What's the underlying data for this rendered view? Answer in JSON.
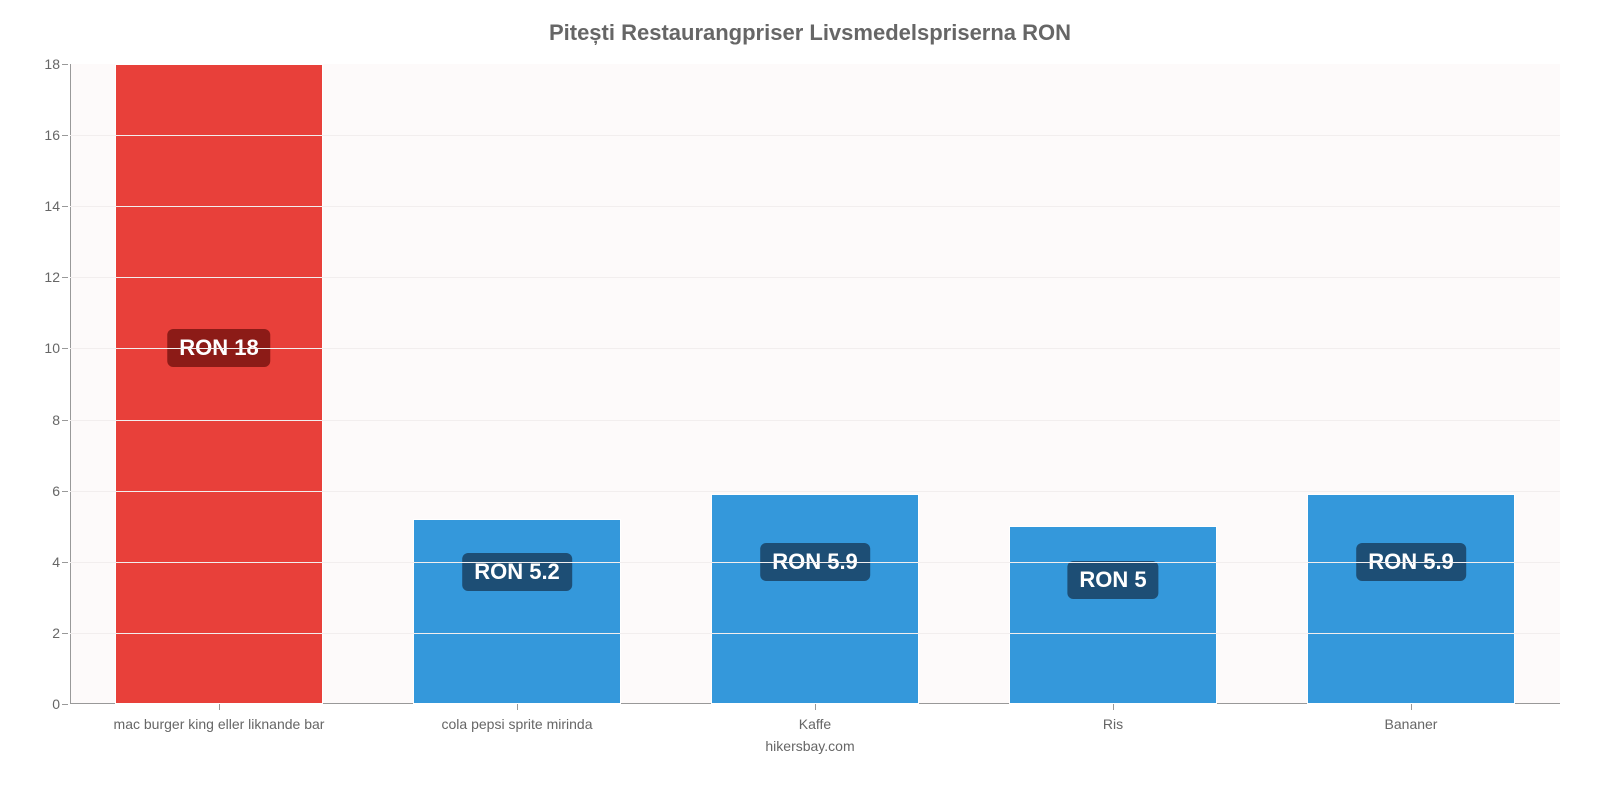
{
  "chart": {
    "type": "bar",
    "title": "Pitești Restaurangpriser Livsmedelspriserna RON",
    "title_fontsize": 22,
    "title_color": "#666666",
    "footer": "hikersbay.com",
    "footer_fontsize": 14,
    "background_color": "#fdfafa",
    "grid_color": "#f2eeee",
    "axis_color": "#999999",
    "bar_border_color": "#ffffff",
    "bar_width": 0.7,
    "ylim": [
      0,
      18
    ],
    "ytick_step": 2,
    "y_tick_fontsize": 14,
    "x_label_fontsize": 14,
    "categories": [
      "mac burger king eller liknande bar",
      "cola pepsi sprite mirinda",
      "Kaffe",
      "Ris",
      "Bananer"
    ],
    "values": [
      18,
      5.2,
      5.9,
      5,
      5.9
    ],
    "value_labels": [
      "RON 18",
      "RON 5.2",
      "RON 5.9",
      "RON 5",
      "RON 5.9"
    ],
    "bar_colors": [
      "#e8403a",
      "#3498db",
      "#3498db",
      "#3498db",
      "#3498db"
    ],
    "label_bg_colors": [
      "#8c1b17",
      "#1d4e75",
      "#1d4e75",
      "#1d4e75",
      "#1d4e75"
    ],
    "label_anchor_value": [
      10,
      3.7,
      4,
      3.5,
      4
    ],
    "value_label_fontsize": 22,
    "value_label_padding": "6px 12px"
  }
}
